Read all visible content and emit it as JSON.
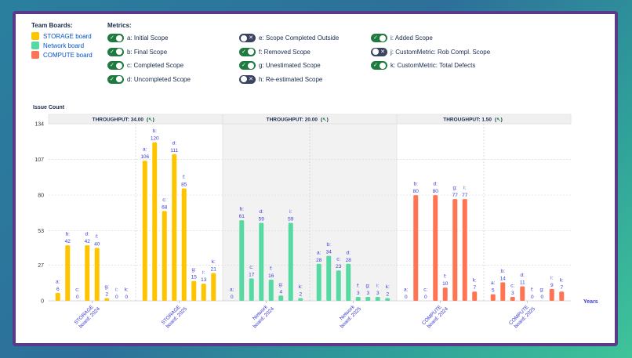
{
  "legend": {
    "title": "Team Boards:",
    "boards": [
      {
        "name": "STORAGE board",
        "color": "#ffc400"
      },
      {
        "name": "Network board",
        "color": "#57d9a3"
      },
      {
        "name": "COMPUTE board",
        "color": "#ff7452"
      }
    ]
  },
  "metrics": {
    "title": "Metrics:",
    "items": [
      {
        "key": "a",
        "label": "a: Initial Scope",
        "enabled": true
      },
      {
        "key": "b",
        "label": "b: Final Scope",
        "enabled": true
      },
      {
        "key": "c",
        "label": "c: Completed Scope",
        "enabled": true
      },
      {
        "key": "d",
        "label": "d: Uncompleted Scope",
        "enabled": true
      },
      {
        "key": "e",
        "label": "e: Scope Completed Outside",
        "enabled": false
      },
      {
        "key": "f",
        "label": "f: Removed Scope",
        "enabled": true
      },
      {
        "key": "g",
        "label": "g: Unestimated Scope",
        "enabled": true
      },
      {
        "key": "h",
        "label": "h: Re-estimated Scope",
        "enabled": false
      },
      {
        "key": "i",
        "label": "i: Added Scope",
        "enabled": true
      },
      {
        "key": "j",
        "label": "j: CustomMetric: Rob Compl. Scope",
        "enabled": false
      },
      {
        "key": "k",
        "label": "k: CustomMetric: Total Defects",
        "enabled": true
      }
    ]
  },
  "chart_data": {
    "type": "bar",
    "ylabel": "Issue Count",
    "xlabel": "Years",
    "ylim": [
      0,
      134
    ],
    "yticks": [
      0,
      27,
      53,
      80,
      107,
      134
    ],
    "grid": true,
    "bar_keys": [
      "a",
      "b",
      "c",
      "d",
      "f",
      "g",
      "i",
      "k"
    ],
    "sections": [
      {
        "board": "STORAGE board",
        "header": "THROUGHPUT: 34.00",
        "trend_icon": "arrow-up-left-icon",
        "color": "#ffc400",
        "shaded": false,
        "groups": [
          {
            "label": "STORAGE board: 2024",
            "values": [
              6,
              42,
              0,
              42,
              40,
              2,
              0,
              0
            ]
          },
          {
            "label": "STORAGE board: 2025",
            "values": [
              106,
              120,
              68,
              111,
              85,
              15,
              13,
              21
            ]
          }
        ]
      },
      {
        "board": "Network board",
        "header": "THROUGHPUT: 20.00",
        "trend_icon": "arrow-up-left-icon",
        "color": "#57d9a3",
        "shaded": true,
        "groups": [
          {
            "label": "Network board: 2024",
            "values": [
              0,
              61,
              17,
              59,
              16,
              4,
              59,
              2
            ]
          },
          {
            "label": "Network board: 2025",
            "values": [
              28,
              34,
              23,
              28,
              3,
              3,
              3,
              2
            ]
          }
        ]
      },
      {
        "board": "COMPUTE board",
        "header": "THROUGHPUT: 1.50",
        "trend_icon": "arrow-up-left-icon",
        "color": "#ff7452",
        "shaded": false,
        "groups": [
          {
            "label": "COMPUTE board: 2024",
            "values": [
              0,
              80,
              0,
              80,
              10,
              77,
              77,
              7
            ]
          },
          {
            "label": "COMPUTE board: 2025",
            "values": [
              5,
              14,
              3,
              11,
              0,
              0,
              9,
              7
            ]
          }
        ]
      }
    ]
  }
}
